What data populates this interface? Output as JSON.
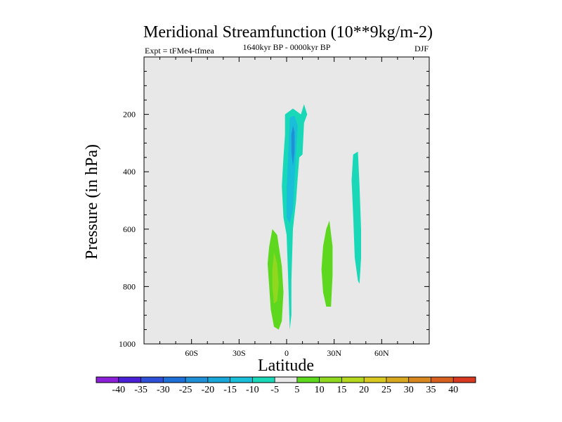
{
  "chart_data": {
    "type": "contour",
    "title": "Meridional Streamfunction (10**9kg/m-2)",
    "subtitle_left": "Expt = tFMe4-tfmea",
    "subtitle_center": "1640kyr BP - 0000kyr BP",
    "subtitle_right": "DJF",
    "xlabel": "Latitude",
    "ylabel": "Pressure (in hPa)",
    "xlim": [
      -90,
      90
    ],
    "ylim": [
      0,
      1000
    ],
    "y_inverted": true,
    "x_ticks": [
      {
        "value": -60,
        "label": "60S"
      },
      {
        "value": -30,
        "label": "30S"
      },
      {
        "value": 0,
        "label": "0"
      },
      {
        "value": 30,
        "label": "30N"
      },
      {
        "value": 60,
        "label": "60N"
      }
    ],
    "y_ticks": [
      {
        "value": 200,
        "label": "200"
      },
      {
        "value": 400,
        "label": "400"
      },
      {
        "value": 600,
        "label": "600"
      },
      {
        "value": 800,
        "label": "800"
      },
      {
        "value": 1000,
        "label": "1000"
      }
    ],
    "background_color": "#e8e8e8",
    "colorbar": {
      "levels": [
        "-40",
        "-35",
        "-30",
        "-25",
        "-20",
        "-15",
        "-10",
        "-5",
        "5",
        "10",
        "15",
        "20",
        "25",
        "30",
        "35",
        "40"
      ],
      "colors": [
        "#8c1fd8",
        "#4a1fd8",
        "#2e4fd8",
        "#1f6fd8",
        "#1f8fd8",
        "#19a6d8",
        "#19bfd8",
        "#19d8b8",
        "#e8e8e8",
        "#5ed81f",
        "#8fd81f",
        "#b5d81f",
        "#d8c81f",
        "#d8a81f",
        "#d8881f",
        "#d8601f",
        "#d8381f"
      ]
    },
    "regions": [
      {
        "name": "tropical-negative-cell-outer",
        "level": "-5",
        "color": "#19d8b8",
        "points": [
          [
            -1,
            200
          ],
          [
            4,
            180
          ],
          [
            9,
            200
          ],
          [
            11,
            165
          ],
          [
            13,
            200
          ],
          [
            11,
            230
          ],
          [
            10,
            340
          ],
          [
            8,
            350
          ],
          [
            7,
            420
          ],
          [
            6,
            500
          ],
          [
            4,
            600
          ],
          [
            3,
            780
          ],
          [
            3,
            900
          ],
          [
            2,
            950
          ],
          [
            1,
            780
          ],
          [
            0,
            620
          ],
          [
            -2,
            560
          ],
          [
            -3,
            450
          ],
          [
            -2,
            350
          ],
          [
            -1,
            270
          ]
        ]
      },
      {
        "name": "tropical-negative-cell-mid",
        "level": "-10",
        "color": "#19bfd8",
        "points": [
          [
            2,
            210
          ],
          [
            5,
            205
          ],
          [
            7,
            240
          ],
          [
            6,
            330
          ],
          [
            5,
            430
          ],
          [
            4,
            530
          ],
          [
            2,
            580
          ],
          [
            0,
            560
          ],
          [
            0,
            460
          ],
          [
            1,
            340
          ]
        ]
      },
      {
        "name": "tropical-negative-cell-inner",
        "level": "-15",
        "color": "#1f8fd8",
        "points": [
          [
            4,
            240
          ],
          [
            5,
            260
          ],
          [
            5,
            330
          ],
          [
            4,
            380
          ],
          [
            3,
            330
          ],
          [
            3,
            270
          ]
        ]
      },
      {
        "name": "midlatitude-negative-cell",
        "level": "-5",
        "color": "#19d8b8",
        "points": [
          [
            42,
            340
          ],
          [
            45,
            330
          ],
          [
            46,
            450
          ],
          [
            47,
            600
          ],
          [
            47,
            700
          ],
          [
            46,
            790
          ],
          [
            45,
            780
          ],
          [
            43,
            700
          ],
          [
            42,
            550
          ],
          [
            41,
            430
          ]
        ]
      },
      {
        "name": "southern-positive-cell-outer",
        "level": "5",
        "color": "#5ed81f",
        "points": [
          [
            -9,
            600
          ],
          [
            -6,
            620
          ],
          [
            -3,
            730
          ],
          [
            -2,
            820
          ],
          [
            -3,
            920
          ],
          [
            -5,
            950
          ],
          [
            -8,
            940
          ],
          [
            -10,
            880
          ],
          [
            -11,
            800
          ],
          [
            -12,
            720
          ],
          [
            -11,
            660
          ]
        ]
      },
      {
        "name": "southern-positive-cell-inner",
        "level": "10",
        "color": "#8fd81f",
        "points": [
          [
            -8,
            680
          ],
          [
            -6,
            720
          ],
          [
            -5,
            790
          ],
          [
            -6,
            850
          ],
          [
            -8,
            860
          ],
          [
            -9,
            800
          ],
          [
            -9,
            740
          ]
        ]
      },
      {
        "name": "northern-positive-cell",
        "level": "5",
        "color": "#5ed81f",
        "points": [
          [
            25,
            600
          ],
          [
            27,
            570
          ],
          [
            29,
            660
          ],
          [
            29,
            760
          ],
          [
            28,
            870
          ],
          [
            25,
            870
          ],
          [
            23,
            820
          ],
          [
            22,
            740
          ],
          [
            23,
            660
          ]
        ]
      }
    ]
  }
}
